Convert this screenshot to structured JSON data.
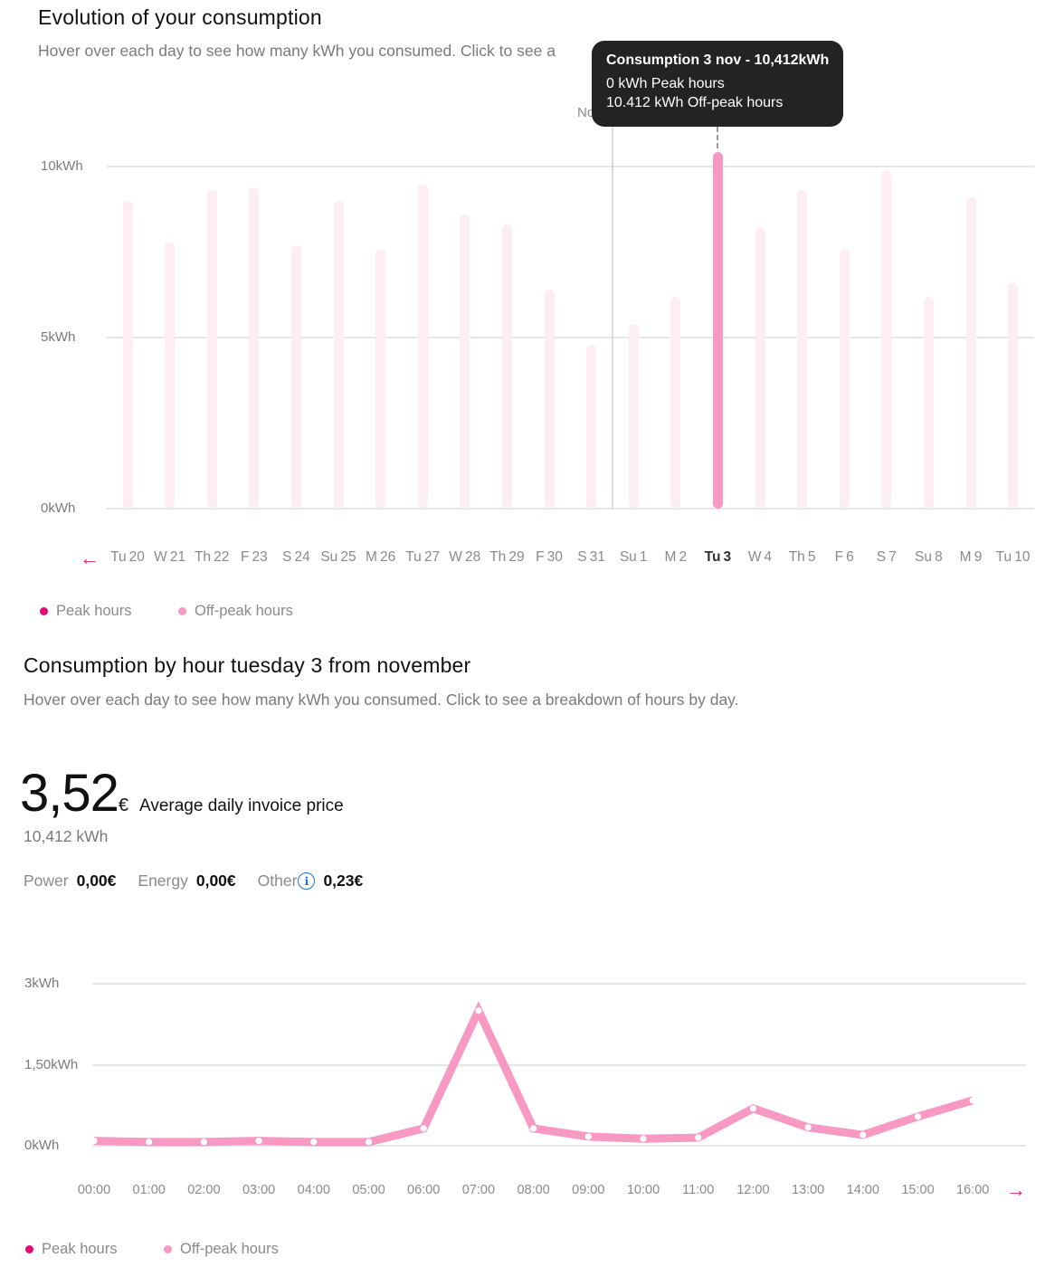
{
  "section1": {
    "title": "Evolution of your consumption",
    "subtitle": "Hover over each day to see how many kWh you consumed. Click to see a",
    "month_marker": "Nov",
    "y_ticks": [
      "10kWh",
      "5kWh",
      "0kWh"
    ],
    "prev_arrow": "←",
    "tooltip": {
      "title": "Consumption 3 nov - 10,412kWh",
      "line1": "0 kWh Peak hours",
      "line2": "10.412 kWh Off-peak hours"
    },
    "legend": {
      "peak": "Peak hours",
      "offpeak": "Off-peak hours"
    }
  },
  "section2": {
    "title": "Consumption by hour tuesday 3 from november",
    "subtitle": "Hover over each day to see how many kWh you consumed. Click to see a breakdown of hours by day.",
    "price_value": "3,52",
    "price_currency": "€",
    "price_label": "Average daily invoice price",
    "kwh_total": "10,412 kWh",
    "breakdown": {
      "power_label": "Power",
      "power_value": "0,00€",
      "energy_label": "Energy",
      "energy_value": "0,00€",
      "other_label": "Other",
      "other_value": "0,23€",
      "info_icon": "i"
    },
    "y_ticks": [
      "3kWh",
      "1,50kWh",
      "0kWh"
    ],
    "next_arrow": "→",
    "legend": {
      "peak": "Peak hours",
      "offpeak": "Off-peak hours"
    }
  },
  "colors": {
    "peak": "#e5087a",
    "offpeak": "#f799c3",
    "offpeak_faded": "#fdeef5",
    "arrow": "#ec1e63",
    "info": "#1a6fe0"
  },
  "chart_data": [
    {
      "type": "bar",
      "title": "Evolution of your consumption",
      "xlabel": "",
      "ylabel": "kWh",
      "ylim": [
        0,
        10
      ],
      "y_ticks": [
        "0kWh",
        "5kWh",
        "10kWh"
      ],
      "grid": true,
      "legend_position": "bottom-left",
      "categories": [
        "Tu 20",
        "W 21",
        "Th 22",
        "F 23",
        "S 24",
        "Su 25",
        "M 26",
        "Tu 27",
        "W 28",
        "Th 29",
        "F 30",
        "S 31",
        "Su 1",
        "M 2",
        "Tu 3",
        "W 4",
        "Th 5",
        "F 6",
        "S 7",
        "Su 8",
        "M 9",
        "Tu 10"
      ],
      "selected_index": 14,
      "series": [
        {
          "name": "Peak hours",
          "values": [
            0,
            0,
            0,
            0,
            0,
            0,
            0,
            0,
            0,
            0,
            0,
            0,
            0,
            0,
            0,
            0,
            0,
            0,
            0,
            0,
            0,
            0
          ]
        },
        {
          "name": "Off-peak hours",
          "values": [
            9.0,
            7.8,
            9.3,
            9.4,
            7.7,
            9.0,
            7.6,
            9.5,
            8.6,
            8.3,
            6.4,
            4.8,
            5.4,
            6.2,
            10.412,
            8.2,
            9.3,
            7.6,
            9.9,
            6.2,
            9.1,
            6.6
          ]
        }
      ],
      "annotations": [
        "Nov (month divider before Su 1)",
        "Tooltip: Consumption 3 nov - 10,412kWh"
      ]
    },
    {
      "type": "line",
      "title": "Consumption by hour tuesday 3 from november",
      "xlabel": "",
      "ylabel": "kWh",
      "ylim": [
        0,
        3
      ],
      "y_ticks": [
        "0kWh",
        "1,50kWh",
        "3kWh"
      ],
      "grid": true,
      "legend_position": "bottom-left",
      "x": [
        "00:00",
        "01:00",
        "02:00",
        "03:00",
        "04:00",
        "05:00",
        "06:00",
        "07:00",
        "08:00",
        "09:00",
        "10:00",
        "11:00",
        "12:00",
        "13:00",
        "14:00",
        "15:00",
        "16:00"
      ],
      "series": [
        {
          "name": "Off-peak hours",
          "values": [
            0.09,
            0.07,
            0.07,
            0.09,
            0.07,
            0.07,
            0.32,
            2.5,
            0.32,
            0.17,
            0.13,
            0.15,
            0.69,
            0.34,
            0.2,
            0.54,
            0.84
          ]
        }
      ]
    }
  ]
}
